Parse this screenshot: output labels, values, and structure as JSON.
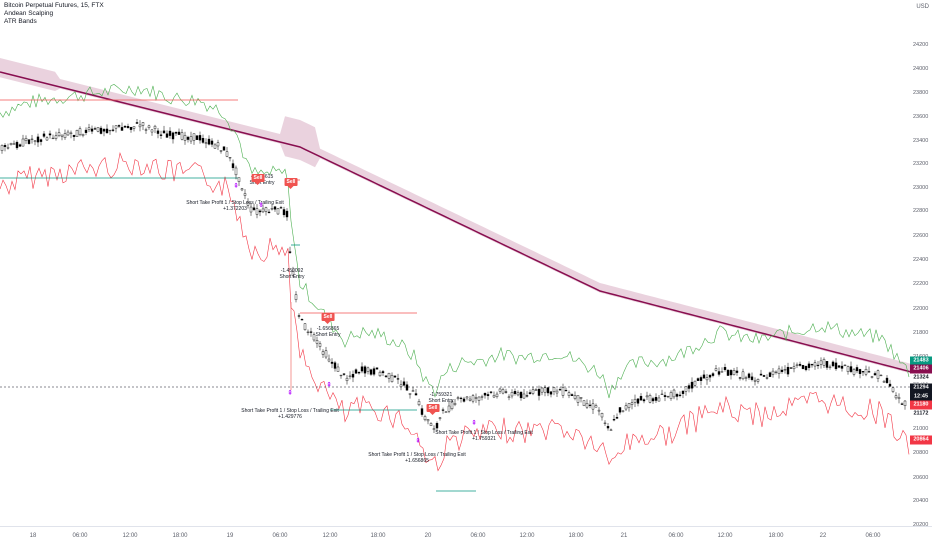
{
  "legend": {
    "symbol": "Bitcoin Perpetual Futures, 15, FTX",
    "indicators": [
      "Andean Scalping",
      "ATR Bands"
    ]
  },
  "price_axis": {
    "currency": "USD",
    "ticks": [
      "24400",
      "24200",
      "24000",
      "23800",
      "23600",
      "23400",
      "23200",
      "23000",
      "22800",
      "22600",
      "22400",
      "22200",
      "22000",
      "21800",
      "21600",
      "21400",
      "21200",
      "21000",
      "20800",
      "20600",
      "20400",
      "20200"
    ],
    "badges": [
      {
        "label": "21483",
        "color": "#089981"
      },
      {
        "label": "21406",
        "color": "#880e4f"
      },
      {
        "label": "21324",
        "color": "#ffffff",
        "text": "#131722"
      },
      {
        "label": "21294",
        "color": "#131722"
      },
      {
        "label": "12:45",
        "color": "#131722"
      },
      {
        "label": "21180",
        "color": "#f23645"
      },
      {
        "label": "21172",
        "color": "#ffffff",
        "text": "#131722"
      },
      {
        "label": "20864",
        "color": "#f23645"
      }
    ]
  },
  "time_axis": {
    "ticks": [
      "18",
      "06:00",
      "12:00",
      "18:00",
      "19",
      "06:00",
      "12:00",
      "18:00",
      "20",
      "06:00",
      "12:00",
      "18:00",
      "21",
      "06:00",
      "12:00",
      "18:00",
      "22",
      "06:00"
    ]
  },
  "annotations": {
    "entry_1_value": "-1.303615",
    "entry_1_label": "Short Entry",
    "exit_1_label": "Short Take Profit 1 / Stop Loss / Trailing Exit",
    "exit_1_value": "+1.372203",
    "entry_2_value": "-1.450092",
    "entry_2_label": "Short Entry",
    "entry_3_value": "-1.656865",
    "entry_3_label": "Short Entry",
    "exit_2_label": "Short Take Profit 1 / Stop Loss / Trailing Exit",
    "exit_2_value": "+1.429776",
    "entry_4_value": "-1.759321",
    "entry_4_label": "Short Entry",
    "exit_3_label": "Short Take Profit 1 / Stop Loss / Trailing Exit",
    "exit_3_value": "+1.656865",
    "exit_4_label": "Short Take Profit 1 / Stop Loss / Trailing Exit",
    "exit_4_value": "+1.759321",
    "sell_label": "Sell"
  },
  "colors": {
    "candle": "#000000",
    "upper_band": "#4caf50",
    "lower_band": "#f23645",
    "ma_line": "#880e4f",
    "ma_cloud": "#e1bfd0",
    "sell": "#f05350",
    "exit_marker": "#b200ff"
  }
}
